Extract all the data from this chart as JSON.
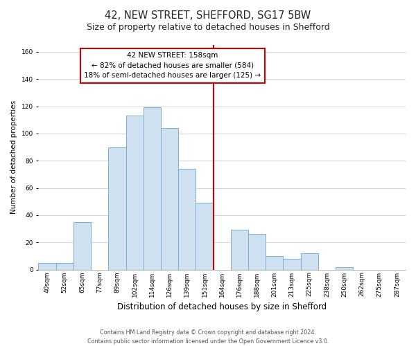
{
  "title": "42, NEW STREET, SHEFFORD, SG17 5BW",
  "subtitle": "Size of property relative to detached houses in Shefford",
  "xlabel": "Distribution of detached houses by size in Shefford",
  "ylabel": "Number of detached properties",
  "bar_labels": [
    "40sqm",
    "52sqm",
    "65sqm",
    "77sqm",
    "89sqm",
    "102sqm",
    "114sqm",
    "126sqm",
    "139sqm",
    "151sqm",
    "164sqm",
    "176sqm",
    "188sqm",
    "201sqm",
    "213sqm",
    "225sqm",
    "238sqm",
    "250sqm",
    "262sqm",
    "275sqm",
    "287sqm"
  ],
  "bar_values": [
    5,
    5,
    35,
    0,
    90,
    113,
    119,
    104,
    74,
    49,
    0,
    29,
    26,
    10,
    8,
    12,
    0,
    2,
    0,
    0,
    0
  ],
  "bar_color": "#cfe0f1",
  "bar_edge_color": "#7bafd4",
  "vline_x": 9.5,
  "vline_color": "#cc0000",
  "annotation_line1": "42 NEW STREET: 158sqm",
  "annotation_line2": "← 82% of detached houses are smaller (584)",
  "annotation_line3": "18% of semi-detached houses are larger (125) →",
  "box_edge_color": "#cc0000",
  "box_face_color": "#ffffff",
  "ylim": [
    0,
    165
  ],
  "yticks": [
    0,
    20,
    40,
    60,
    80,
    100,
    120,
    140,
    160
  ],
  "grid_color": "#cccccc",
  "footer1": "Contains HM Land Registry data © Crown copyright and database right 2024.",
  "footer2": "Contains public sector information licensed under the Open Government Licence v3.0.",
  "title_fontsize": 10.5,
  "subtitle_fontsize": 9,
  "xlabel_fontsize": 8.5,
  "ylabel_fontsize": 7.5,
  "tick_fontsize": 6.5,
  "annotation_fontsize": 7.5,
  "footer_fontsize": 5.8
}
